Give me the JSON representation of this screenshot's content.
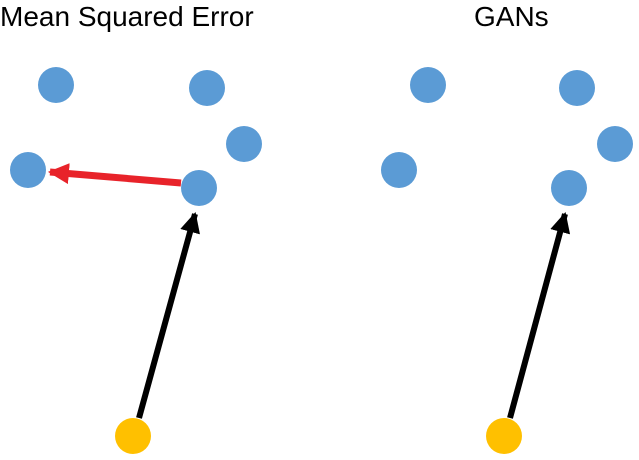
{
  "panels": {
    "left": {
      "title": "Mean Squared Error"
    },
    "right": {
      "title": "GANs"
    }
  },
  "colors": {
    "sample_point": "#5B9BD5",
    "latent_point": "#FFC000",
    "generator_arrow": "#000000",
    "error_arrow": "#E8232A"
  }
}
